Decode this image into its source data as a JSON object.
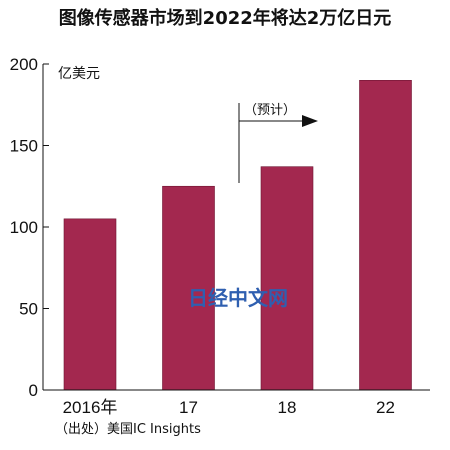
{
  "chart_data": {
    "type": "bar",
    "title": "图像传感器市场到2022年将达2万亿日元",
    "ylabel": "亿美元",
    "categories": [
      "2016年",
      "17",
      "18",
      "22"
    ],
    "values": [
      105,
      125,
      137,
      190
    ],
    "ylim": [
      0,
      200
    ],
    "yticks": [
      0,
      50,
      100,
      150,
      200
    ],
    "grid": false,
    "legend": "none",
    "bar_color": "#a3284f",
    "annotation": "（预计）",
    "source": "（出处）美国IC Insights"
  },
  "watermark": "日经中文网"
}
